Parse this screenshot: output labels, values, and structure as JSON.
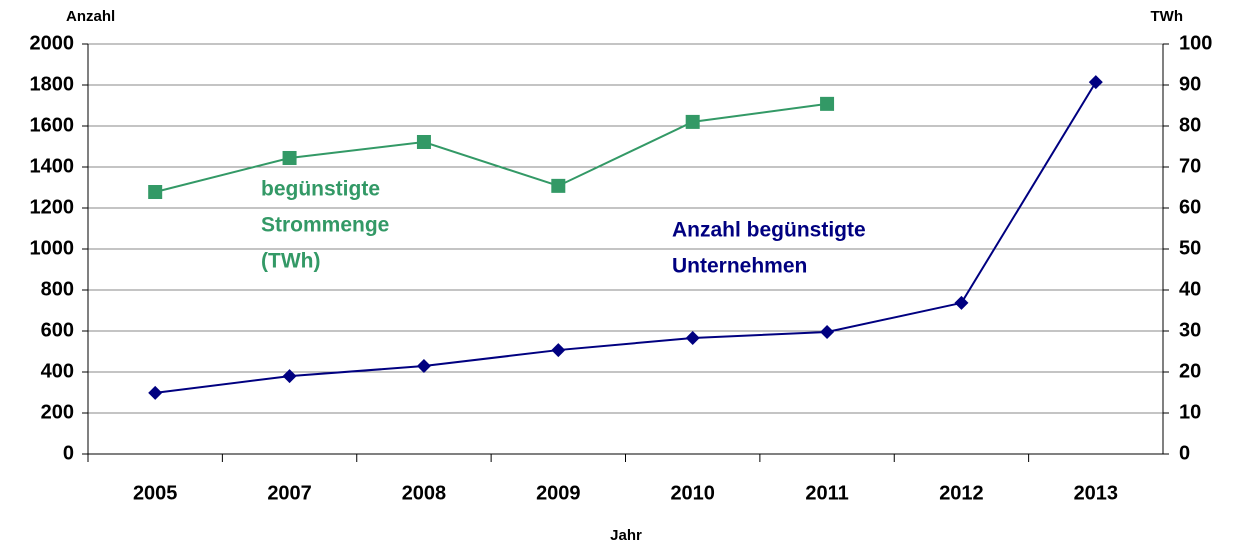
{
  "chart_data": {
    "type": "line",
    "y_label": "Anzahl",
    "y2_label": "TWh",
    "x_label": "Jahr",
    "categories": [
      "2005",
      "2007",
      "2008",
      "2009",
      "2010",
      "2011",
      "2012",
      "2013"
    ],
    "series": [
      {
        "color": "#000080",
        "marker": "diamond",
        "values": [
          298,
          380,
          429,
          507,
          566,
          595,
          737,
          1814
        ]
      },
      {
        "color": "#339966",
        "marker": "square",
        "axis": "y2",
        "values": [
          63.9,
          72.2,
          76.1,
          65.4,
          81,
          85.4,
          null,
          null
        ]
      }
    ],
    "ylim": [
      0,
      2000
    ],
    "yticks": [
      0,
      200,
      400,
      600,
      800,
      1000,
      1200,
      1400,
      1600,
      1800,
      2000
    ],
    "y2lim": [
      0,
      100
    ],
    "y2ticks": [
      0,
      10,
      20,
      30,
      40,
      50,
      60,
      70,
      80,
      90,
      100
    ],
    "grid": true,
    "annotations": [
      {
        "lines": [
          "begünstigte",
          "Strommenge",
          "(TWh)"
        ],
        "color": "#339966"
      },
      {
        "lines": [
          "Anzahl begünstigte",
          "Unternehmen"
        ],
        "color": "#000080"
      }
    ]
  }
}
